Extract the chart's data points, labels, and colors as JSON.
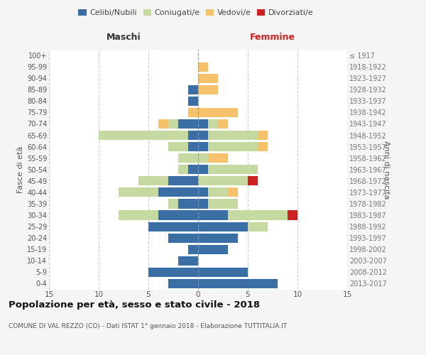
{
  "age_groups": [
    "0-4",
    "5-9",
    "10-14",
    "15-19",
    "20-24",
    "25-29",
    "30-34",
    "35-39",
    "40-44",
    "45-49",
    "50-54",
    "55-59",
    "60-64",
    "65-69",
    "70-74",
    "75-79",
    "80-84",
    "85-89",
    "90-94",
    "95-99",
    "100+"
  ],
  "birth_years": [
    "2013-2017",
    "2008-2012",
    "2003-2007",
    "1998-2002",
    "1993-1997",
    "1988-1992",
    "1983-1987",
    "1978-1982",
    "1973-1977",
    "1968-1972",
    "1963-1967",
    "1958-1962",
    "1953-1957",
    "1948-1952",
    "1943-1947",
    "1938-1942",
    "1933-1937",
    "1928-1932",
    "1923-1927",
    "1918-1922",
    "≤ 1917"
  ],
  "colors": {
    "celibi": "#3a6ea5",
    "coniugati": "#c5d9a0",
    "vedovi": "#f5c26b",
    "divorziati": "#cc2222"
  },
  "maschi": {
    "celibi": [
      3,
      5,
      2,
      1,
      3,
      5,
      4,
      2,
      4,
      3,
      1,
      0,
      1,
      1,
      2,
      0,
      1,
      1,
      0,
      0,
      0
    ],
    "coniugati": [
      0,
      0,
      0,
      0,
      0,
      0,
      4,
      1,
      4,
      3,
      1,
      2,
      2,
      9,
      1,
      0,
      0,
      0,
      0,
      0,
      0
    ],
    "vedovi": [
      0,
      0,
      0,
      0,
      0,
      0,
      0,
      0,
      0,
      0,
      0,
      0,
      0,
      0,
      1,
      1,
      0,
      0,
      0,
      0,
      0
    ],
    "divorziati": [
      0,
      0,
      0,
      0,
      0,
      0,
      0,
      0,
      0,
      0,
      0,
      0,
      0,
      0,
      0,
      0,
      0,
      0,
      0,
      0,
      0
    ]
  },
  "femmine": {
    "celibi": [
      8,
      5,
      0,
      3,
      4,
      5,
      3,
      1,
      1,
      0,
      1,
      0,
      1,
      1,
      1,
      0,
      0,
      0,
      0,
      0,
      0
    ],
    "coniugati": [
      0,
      0,
      0,
      0,
      0,
      2,
      6,
      3,
      2,
      5,
      5,
      1,
      5,
      5,
      1,
      0,
      0,
      0,
      0,
      0,
      0
    ],
    "vedovi": [
      0,
      0,
      0,
      0,
      0,
      0,
      0,
      0,
      1,
      0,
      0,
      2,
      1,
      1,
      1,
      4,
      0,
      2,
      2,
      1,
      0
    ],
    "divorziati": [
      0,
      0,
      0,
      0,
      0,
      0,
      1,
      0,
      0,
      1,
      0,
      0,
      0,
      0,
      0,
      0,
      0,
      0,
      0,
      0,
      0
    ]
  },
  "title": "Popolazione per età, sesso e stato civile - 2018",
  "subtitle": "COMUNE DI VAL REZZO (CO) - Dati ISTAT 1° gennaio 2018 - Elaborazione TUTTITALIA.IT",
  "xlabel_left": "Maschi",
  "xlabel_right": "Femmine",
  "ylabel_left": "Fasce di età",
  "ylabel_right": "Anni di nascita",
  "xlim": 15,
  "legend_labels": [
    "Celibi/Nubili",
    "Coniugati/e",
    "Vedovi/e",
    "Divorziati/e"
  ],
  "bg_color": "#f5f5f5",
  "plot_bg": "#ffffff",
  "grid_color": "#cccccc"
}
